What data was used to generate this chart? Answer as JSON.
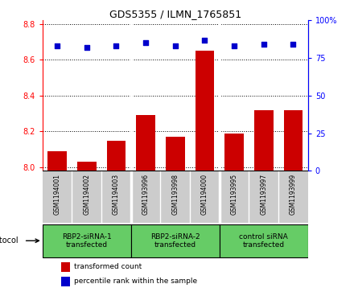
{
  "title": "GDS5355 / ILMN_1765851",
  "samples": [
    "GSM1194001",
    "GSM1194002",
    "GSM1194003",
    "GSM1193996",
    "GSM1193998",
    "GSM1194000",
    "GSM1193995",
    "GSM1193997",
    "GSM1193999"
  ],
  "transformed_counts": [
    8.09,
    8.03,
    8.15,
    8.29,
    8.17,
    8.65,
    8.19,
    8.32,
    8.32
  ],
  "percentile_ranks": [
    83,
    82,
    83,
    85,
    83,
    87,
    83,
    84,
    84
  ],
  "bar_color": "#cc0000",
  "dot_color": "#0000cc",
  "ylim_left": [
    7.98,
    8.82
  ],
  "ylim_right": [
    0,
    100
  ],
  "yticks_left": [
    8.0,
    8.2,
    8.4,
    8.6,
    8.8
  ],
  "yticks_right": [
    0,
    25,
    50,
    75,
    100
  ],
  "ytick_labels_right": [
    "0",
    "25",
    "50",
    "75",
    "100%"
  ],
  "groups": [
    {
      "label": "RBP2-siRNA-1\ntransfected",
      "start": 0,
      "end": 3
    },
    {
      "label": "RBP2-siRNA-2\ntransfected",
      "start": 3,
      "end": 6
    },
    {
      "label": "control siRNA\ntransfected",
      "start": 6,
      "end": 9
    }
  ],
  "legend_bar_label": "transformed count",
  "legend_dot_label": "percentile rank within the sample",
  "protocol_label": "protocol",
  "sample_bg_color": "#cccccc",
  "group_bg_color": "#66cc66",
  "plot_bg_color": "#ffffff"
}
